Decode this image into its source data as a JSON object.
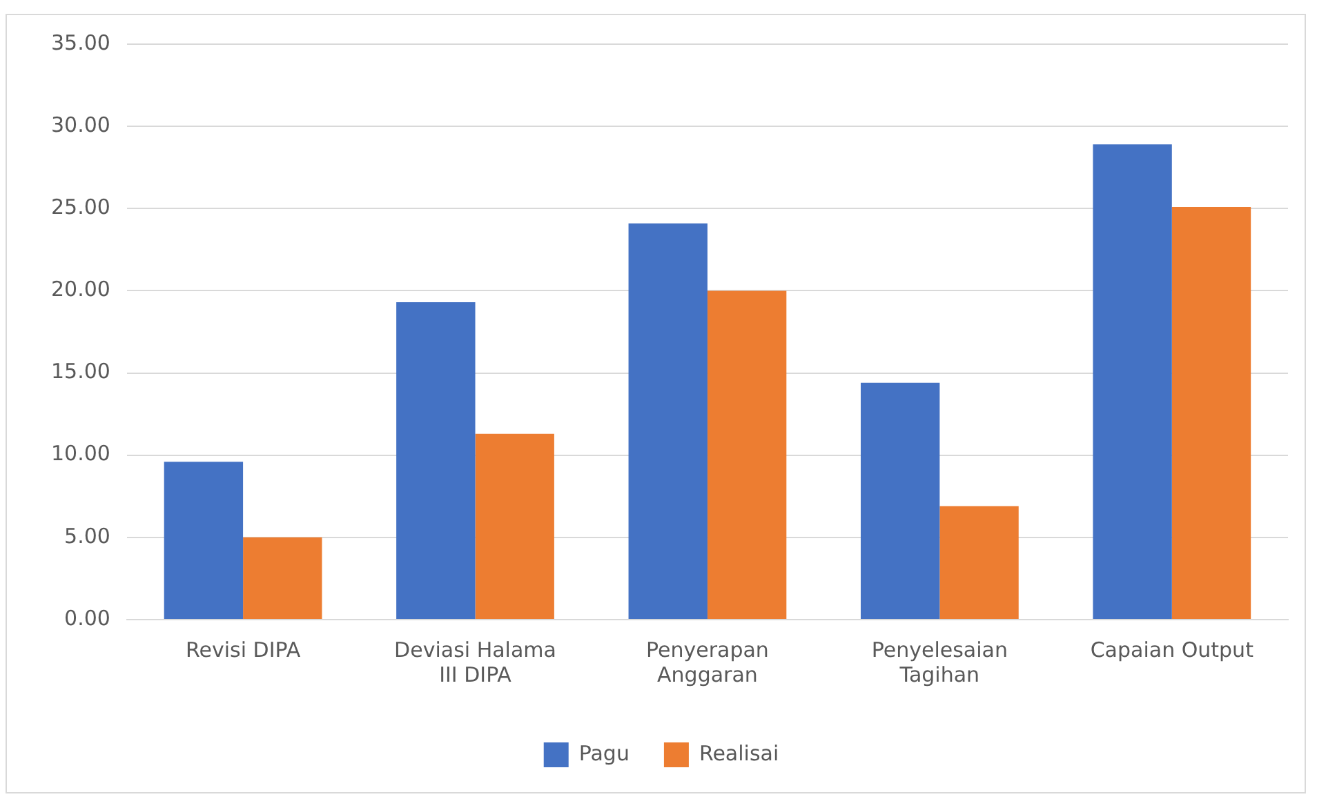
{
  "chart_data": {
    "type": "bar",
    "categories": [
      "Revisi DIPA",
      "Deviasi Halama III DIPA",
      "Penyerapan Anggaran",
      "Penyelesaian Tagihan",
      "Capaian Output"
    ],
    "series": [
      {
        "name": "Pagu",
        "color": "#4472c4",
        "values": [
          9.6,
          19.3,
          24.1,
          14.4,
          28.9
        ]
      },
      {
        "name": "Realisai",
        "color": "#ed7d31",
        "values": [
          5.0,
          11.3,
          20.0,
          6.9,
          25.1
        ]
      }
    ],
    "ylim": [
      0,
      35
    ],
    "yticks": [
      {
        "value": 0,
        "label": "0.00"
      },
      {
        "value": 5,
        "label": "5.00"
      },
      {
        "value": 10,
        "label": "10.00"
      },
      {
        "value": 15,
        "label": "15.00"
      },
      {
        "value": 20,
        "label": "20.00"
      },
      {
        "value": 25,
        "label": "25.00"
      },
      {
        "value": 30,
        "label": "30.00"
      },
      {
        "value": 35,
        "label": "35.00"
      }
    ],
    "grid": "y",
    "legend": "bottom"
  }
}
